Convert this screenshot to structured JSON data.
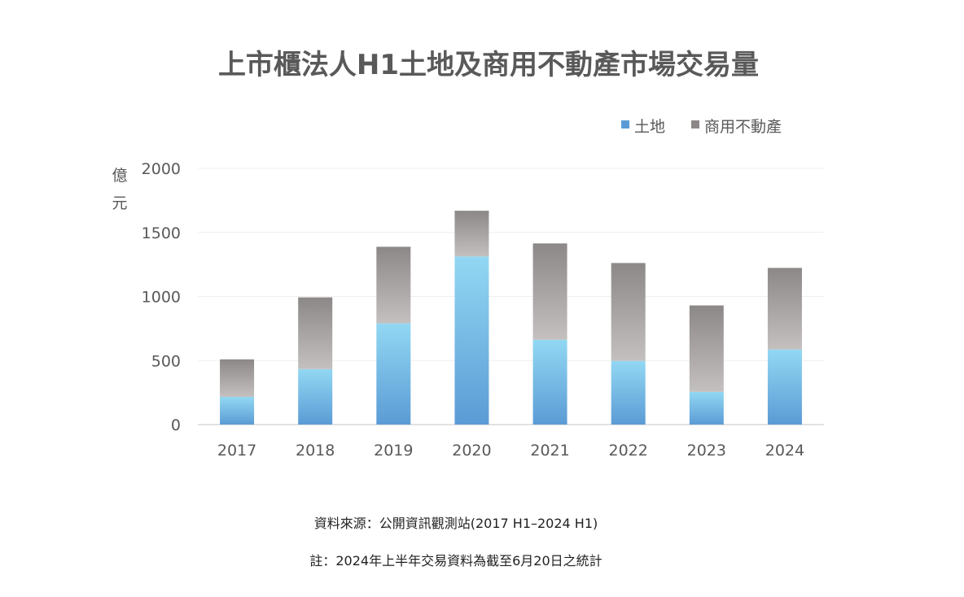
{
  "chart_data": {
    "type": "bar",
    "stacked": true,
    "title": "上市櫃法人H1土地及商用不動產市場交易量",
    "ylabel": "億元",
    "ylim": [
      0,
      2000
    ],
    "yticks": [
      "0",
      "500",
      "1000",
      "1500",
      "2000"
    ],
    "categories": [
      "2017",
      "2018",
      "2019",
      "2020",
      "2021",
      "2022",
      "2023",
      "2024"
    ],
    "series": [
      {
        "name": "土地",
        "color": "#5b9bd5",
        "values": [
          216,
          433,
          790,
          1312,
          662,
          497,
          255,
          586
        ]
      },
      {
        "name": "商用不動產",
        "color": "#8c8888",
        "values": [
          293,
          560,
          598,
          357,
          752,
          764,
          675,
          637
        ]
      }
    ],
    "legend": "top-right",
    "grid": true
  },
  "notes": {
    "source": "資料來源：公開資訊觀測站(2017 H1–2024 H1)",
    "footnote": "註：2024年上半年交易資料為截至6月20日之統計"
  }
}
